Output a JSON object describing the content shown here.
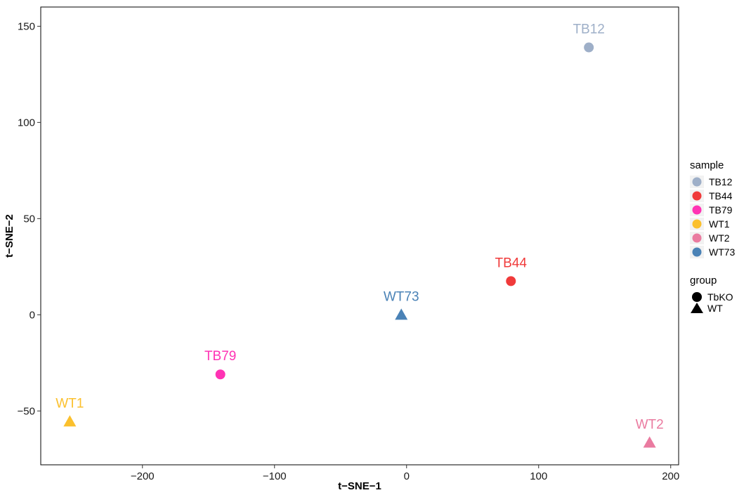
{
  "chart_data": {
    "type": "scatter",
    "xlabel": "t−SNE−1",
    "ylabel": "t−SNE−2",
    "xlim": [
      -277,
      206
    ],
    "ylim": [
      -78,
      160
    ],
    "xticks": [
      -200,
      -100,
      0,
      100,
      200
    ],
    "xtick_labels": [
      "−200",
      "−100",
      "0",
      "100",
      "200"
    ],
    "yticks": [
      -50,
      0,
      50,
      100,
      150
    ],
    "ytick_labels": [
      "−50",
      "0",
      "50",
      "100",
      "150"
    ],
    "grid": false,
    "points": [
      {
        "label": "TB12",
        "sample": "TB12",
        "group": "TbKO",
        "x": 138,
        "y": 139
      },
      {
        "label": "TB44",
        "sample": "TB44",
        "group": "TbKO",
        "x": 79,
        "y": 17.5
      },
      {
        "label": "WT73",
        "sample": "WT73",
        "group": "WT",
        "x": -4,
        "y": 0
      },
      {
        "label": "TB79",
        "sample": "TB79",
        "group": "TbKO",
        "x": -141,
        "y": -31
      },
      {
        "label": "WT1",
        "sample": "WT1",
        "group": "WT",
        "x": -255,
        "y": -55.5
      },
      {
        "label": "WT2",
        "sample": "WT2",
        "group": "WT",
        "x": 184,
        "y": -66.5
      }
    ],
    "legend": {
      "placement": "right",
      "sample_title": "sample",
      "samples": [
        {
          "name": "TB12",
          "color": "#9EAFC8"
        },
        {
          "name": "TB44",
          "color": "#F03A3A"
        },
        {
          "name": "TB79",
          "color": "#FF33B4"
        },
        {
          "name": "WT1",
          "color": "#FBC02D"
        },
        {
          "name": "WT2",
          "color": "#EA7BA0"
        },
        {
          "name": "WT73",
          "color": "#4A82B6"
        }
      ],
      "group_title": "group",
      "groups": [
        {
          "name": "TbKO",
          "shape": "circle"
        },
        {
          "name": "WT",
          "shape": "triangle"
        }
      ]
    }
  }
}
